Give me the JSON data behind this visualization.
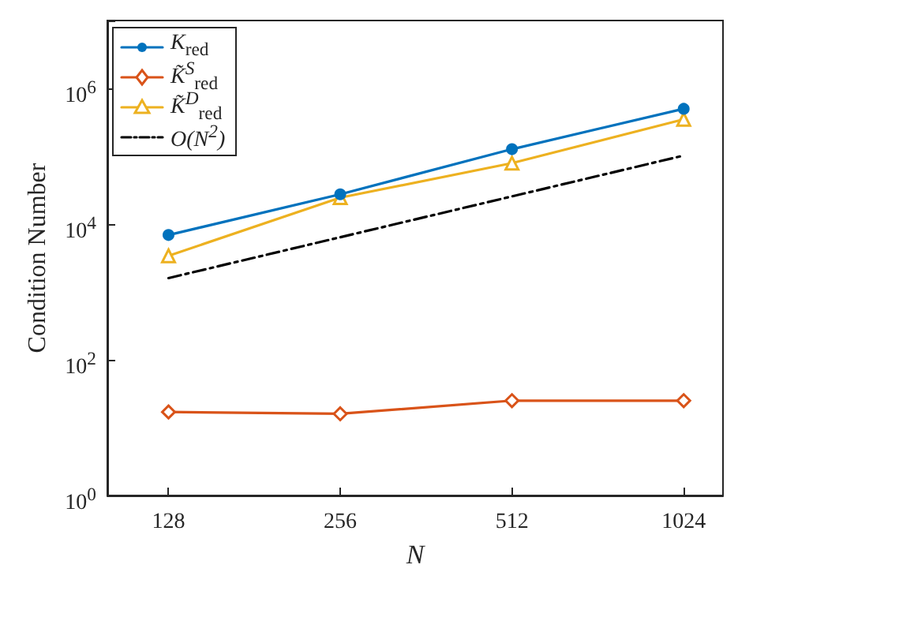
{
  "chart_data": {
    "type": "line",
    "xlabel": "N",
    "ylabel": "Condition Number",
    "x": [
      128,
      256,
      512,
      1024
    ],
    "xlim": [
      100,
      1200
    ],
    "xticks": [
      128,
      256,
      512,
      1024
    ],
    "ylim": [
      1,
      10000000
    ],
    "yticks": [
      {
        "value": 1,
        "label": "10$^{0}$"
      },
      {
        "value": 100,
        "label": "10$^{2}$"
      },
      {
        "value": 10000,
        "label": "10$^{4}$"
      },
      {
        "value": 1000000,
        "label": "10$^{6}$"
      }
    ],
    "log": "xy",
    "grid": false,
    "legend": "top left",
    "series": [
      {
        "name": "K$_{red}$",
        "color": "#0072bd",
        "marker": "circle",
        "values": [
          6900,
          27500,
          127000,
          500000
        ]
      },
      {
        "name": "K̃$^{S}$$_{red}$",
        "color": "#d95319",
        "marker": "diamond",
        "values": [
          17,
          16,
          25,
          25
        ]
      },
      {
        "name": "K̃$^{D}$$_{red}$",
        "color": "#edb120",
        "marker": "triangle",
        "values": [
          3400,
          24500,
          79000,
          350000
        ]
      },
      {
        "name": "O(N$^{2}$)",
        "color": "#000000",
        "marker": "none",
        "line_style": "dashed",
        "values": [
          1600,
          6400,
          25600,
          102400
        ]
      }
    ]
  }
}
